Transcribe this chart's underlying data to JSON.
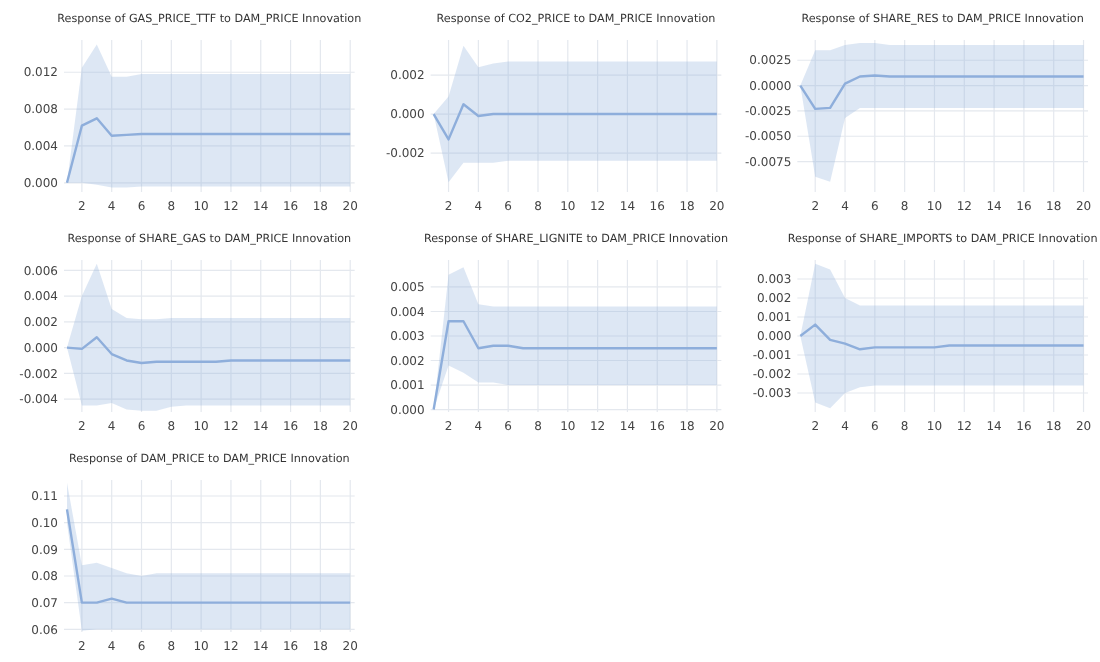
{
  "chart_data": [
    {
      "type": "line",
      "title": "Response of GAS_PRICE_TTF to DAM_PRICE Innovation",
      "x": [
        1,
        2,
        3,
        4,
        5,
        6,
        7,
        8,
        9,
        10,
        11,
        12,
        13,
        14,
        15,
        16,
        17,
        18,
        19,
        20
      ],
      "xlim": [
        0.8,
        20.3
      ],
      "xticks": [
        2,
        4,
        6,
        8,
        10,
        12,
        14,
        16,
        18,
        20
      ],
      "ylim": [
        -0.001,
        0.0155
      ],
      "yticks": [
        {
          "value": 0,
          "label": "0.000"
        },
        0.004,
        0.008,
        0.012
      ],
      "grid": true,
      "series": [
        {
          "color": "#8eaedb",
          "values": [
            0,
            0.0062,
            0.007,
            0.0051,
            0.0052,
            0.0053,
            0.0053,
            0.0053,
            0.0053,
            0.0053,
            0.0053,
            0.0053,
            0.0053,
            0.0053,
            0.0053,
            0.0053,
            0.0053,
            0.0053,
            0.0053,
            0.0053
          ],
          "lower": [
            0,
            0,
            -0.0002,
            -0.0005,
            -0.0005,
            -0.0004,
            -0.0004,
            -0.0004,
            -0.0004,
            -0.0004,
            -0.0004,
            -0.0004,
            -0.0004,
            -0.0004,
            -0.0004,
            -0.0004,
            -0.0004,
            -0.0004,
            -0.0004,
            -0.0004
          ],
          "upper": [
            0,
            0.0125,
            0.015,
            0.0115,
            0.0115,
            0.0118,
            0.0118,
            0.0118,
            0.0118,
            0.0118,
            0.0118,
            0.0118,
            0.0118,
            0.0118,
            0.0118,
            0.0118,
            0.0118,
            0.0118,
            0.0118,
            0.0118
          ]
        }
      ]
    },
    {
      "type": "line",
      "title": "Response of CO2_PRICE to DAM_PRICE Innovation",
      "x": [
        1,
        2,
        3,
        4,
        5,
        6,
        7,
        8,
        9,
        10,
        11,
        12,
        13,
        14,
        15,
        16,
        17,
        18,
        19,
        20
      ],
      "xlim": [
        0.8,
        20.3
      ],
      "xticks": [
        2,
        4,
        6,
        8,
        10,
        12,
        14,
        16,
        18,
        20
      ],
      "ylim": [
        -0.004,
        0.0038
      ],
      "yticks": [
        -0.002,
        {
          "value": 0,
          "label": "0.000"
        },
        0.002
      ],
      "grid": true,
      "series": [
        {
          "color": "#8eaedb",
          "values": [
            0,
            -0.0013,
            0.0005,
            -0.0001,
            0,
            0,
            0,
            0,
            0,
            0,
            0,
            0,
            0,
            0,
            0,
            0,
            0,
            0,
            0,
            0
          ],
          "lower": [
            0,
            -0.0035,
            -0.0025,
            -0.0025,
            -0.0025,
            -0.0024,
            -0.0024,
            -0.0024,
            -0.0024,
            -0.0024,
            -0.0024,
            -0.0024,
            -0.0024,
            -0.0024,
            -0.0024,
            -0.0024,
            -0.0024,
            -0.0024,
            -0.0024,
            -0.0024
          ],
          "upper": [
            0,
            0.0009,
            0.0035,
            0.0024,
            0.0026,
            0.0027,
            0.0027,
            0.0027,
            0.0027,
            0.0027,
            0.0027,
            0.0027,
            0.0027,
            0.0027,
            0.0027,
            0.0027,
            0.0027,
            0.0027,
            0.0027,
            0.0027
          ]
        }
      ]
    },
    {
      "type": "line",
      "title": "Response of SHARE_RES to DAM_PRICE Innovation",
      "x": [
        1,
        2,
        3,
        4,
        5,
        6,
        7,
        8,
        9,
        10,
        11,
        12,
        13,
        14,
        15,
        16,
        17,
        18,
        19,
        20
      ],
      "xlim": [
        0.8,
        20.3
      ],
      "xticks": [
        2,
        4,
        6,
        8,
        10,
        12,
        14,
        16,
        18,
        20
      ],
      "ylim": [
        -0.0105,
        0.0045
      ],
      "yticks": [
        -0.0075,
        {
          "value": -0.005,
          "label": "-0.0050"
        },
        -0.0025,
        {
          "value": 0,
          "label": "0.0000"
        },
        0.0025
      ],
      "grid": true,
      "series": [
        {
          "color": "#8eaedb",
          "values": [
            0,
            -0.0023,
            -0.0022,
            0.0002,
            0.0009,
            0.001,
            0.0009,
            0.0009,
            0.0009,
            0.0009,
            0.0009,
            0.0009,
            0.0009,
            0.0009,
            0.0009,
            0.0009,
            0.0009,
            0.0009,
            0.0009,
            0.0009
          ],
          "lower": [
            0,
            -0.009,
            -0.0095,
            -0.0032,
            -0.0022,
            -0.0022,
            -0.0022,
            -0.0022,
            -0.0022,
            -0.0022,
            -0.0022,
            -0.0022,
            -0.0022,
            -0.0022,
            -0.0022,
            -0.0022,
            -0.0022,
            -0.0022,
            -0.0022,
            -0.0022
          ],
          "upper": [
            0,
            0.0035,
            0.0035,
            0.004,
            0.0042,
            0.0042,
            0.004,
            0.004,
            0.004,
            0.004,
            0.004,
            0.004,
            0.004,
            0.004,
            0.004,
            0.004,
            0.004,
            0.004,
            0.004,
            0.004
          ]
        }
      ]
    },
    {
      "type": "line",
      "title": "Response of SHARE_GAS to DAM_PRICE Innovation",
      "x": [
        1,
        2,
        3,
        4,
        5,
        6,
        7,
        8,
        9,
        10,
        11,
        12,
        13,
        14,
        15,
        16,
        17,
        18,
        19,
        20
      ],
      "xlim": [
        0.8,
        20.3
      ],
      "xticks": [
        2,
        4,
        6,
        8,
        10,
        12,
        14,
        16,
        18,
        20
      ],
      "ylim": [
        -0.005,
        0.0068
      ],
      "yticks": [
        -0.004,
        -0.002,
        {
          "value": 0,
          "label": "0.000"
        },
        0.002,
        0.004,
        0.006
      ],
      "grid": true,
      "series": [
        {
          "color": "#8eaedb",
          "values": [
            0,
            -0.0001,
            0.0008,
            -0.0005,
            -0.001,
            -0.0012,
            -0.0011,
            -0.0011,
            -0.0011,
            -0.0011,
            -0.0011,
            -0.001,
            -0.001,
            -0.001,
            -0.001,
            -0.001,
            -0.001,
            -0.001,
            -0.001,
            -0.001
          ],
          "lower": [
            0,
            -0.0045,
            -0.0045,
            -0.0043,
            -0.0048,
            -0.0049,
            -0.0049,
            -0.0046,
            -0.0045,
            -0.0045,
            -0.0045,
            -0.0045,
            -0.0045,
            -0.0045,
            -0.0045,
            -0.0045,
            -0.0045,
            -0.0045,
            -0.0045,
            -0.0045
          ],
          "upper": [
            0,
            0.004,
            0.0065,
            0.003,
            0.0023,
            0.0022,
            0.0022,
            0.0023,
            0.0023,
            0.0023,
            0.0023,
            0.0023,
            0.0023,
            0.0023,
            0.0023,
            0.0023,
            0.0023,
            0.0023,
            0.0023,
            0.0023
          ]
        }
      ]
    },
    {
      "type": "line",
      "title": "Response of SHARE_LIGNITE to DAM_PRICE Innovation",
      "x": [
        1,
        2,
        3,
        4,
        5,
        6,
        7,
        8,
        9,
        10,
        11,
        12,
        13,
        14,
        15,
        16,
        17,
        18,
        19,
        20
      ],
      "xlim": [
        0.8,
        20.3
      ],
      "xticks": [
        2,
        4,
        6,
        8,
        10,
        12,
        14,
        16,
        18,
        20
      ],
      "ylim": [
        -0.0001,
        0.0061
      ],
      "yticks": [
        {
          "value": 0,
          "label": "0.000"
        },
        0.001,
        0.002,
        0.003,
        0.004,
        0.005
      ],
      "grid": true,
      "series": [
        {
          "color": "#8eaedb",
          "values": [
            0,
            0.0036,
            0.0036,
            0.0025,
            0.0026,
            0.0026,
            0.0025,
            0.0025,
            0.0025,
            0.0025,
            0.0025,
            0.0025,
            0.0025,
            0.0025,
            0.0025,
            0.0025,
            0.0025,
            0.0025,
            0.0025,
            0.0025
          ],
          "lower": [
            0,
            0.0018,
            0.0015,
            0.0011,
            0.0011,
            0.001,
            0.001,
            0.001,
            0.001,
            0.001,
            0.001,
            0.001,
            0.001,
            0.001,
            0.001,
            0.001,
            0.001,
            0.001,
            0.001,
            0.001
          ],
          "upper": [
            0,
            0.0055,
            0.0058,
            0.0043,
            0.0042,
            0.0042,
            0.0042,
            0.0042,
            0.0042,
            0.0042,
            0.0042,
            0.0042,
            0.0042,
            0.0042,
            0.0042,
            0.0042,
            0.0042,
            0.0042,
            0.0042,
            0.0042
          ]
        }
      ]
    },
    {
      "type": "line",
      "title": "Response of SHARE_IMPORTS to DAM_PRICE Innovation",
      "x": [
        1,
        2,
        3,
        4,
        5,
        6,
        7,
        8,
        9,
        10,
        11,
        12,
        13,
        14,
        15,
        16,
        17,
        18,
        19,
        20
      ],
      "xlim": [
        0.8,
        20.3
      ],
      "xticks": [
        2,
        4,
        6,
        8,
        10,
        12,
        14,
        16,
        18,
        20
      ],
      "ylim": [
        -0.004,
        0.004
      ],
      "yticks": [
        -0.003,
        -0.002,
        -0.001,
        {
          "value": 0,
          "label": "0.000"
        },
        0.001,
        0.002,
        0.003
      ],
      "grid": true,
      "series": [
        {
          "color": "#8eaedb",
          "values": [
            0,
            0.0006,
            -0.0002,
            -0.0004,
            -0.0007,
            -0.0006,
            -0.0006,
            -0.0006,
            -0.0006,
            -0.0006,
            -0.0005,
            -0.0005,
            -0.0005,
            -0.0005,
            -0.0005,
            -0.0005,
            -0.0005,
            -0.0005,
            -0.0005,
            -0.0005
          ],
          "lower": [
            0,
            -0.0035,
            -0.0038,
            -0.003,
            -0.0027,
            -0.0026,
            -0.0026,
            -0.0026,
            -0.0026,
            -0.0026,
            -0.0026,
            -0.0026,
            -0.0026,
            -0.0026,
            -0.0026,
            -0.0026,
            -0.0026,
            -0.0026,
            -0.0026,
            -0.0026
          ],
          "upper": [
            0,
            0.0038,
            0.0035,
            0.002,
            0.0016,
            0.0016,
            0.0016,
            0.0016,
            0.0016,
            0.0016,
            0.0016,
            0.0016,
            0.0016,
            0.0016,
            0.0016,
            0.0016,
            0.0016,
            0.0016,
            0.0016,
            0.0016
          ]
        }
      ]
    },
    {
      "type": "line",
      "title": "Response of DAM_PRICE to DAM_PRICE Innovation",
      "x": [
        1,
        2,
        3,
        4,
        5,
        6,
        7,
        8,
        9,
        10,
        11,
        12,
        13,
        14,
        15,
        16,
        17,
        18,
        19,
        20
      ],
      "xlim": [
        0.8,
        20.3
      ],
      "xticks": [
        2,
        4,
        6,
        8,
        10,
        12,
        14,
        16,
        18,
        20
      ],
      "ylim": [
        0.059,
        0.116
      ],
      "yticks": [
        0.06,
        0.07,
        0.08,
        0.09,
        {
          "value": 0.1,
          "label": "0.10"
        },
        0.11
      ],
      "grid": true,
      "series": [
        {
          "color": "#8eaedb",
          "values": [
            0.105,
            0.07,
            0.07,
            0.0715,
            0.07,
            0.07,
            0.07,
            0.07,
            0.07,
            0.07,
            0.07,
            0.07,
            0.07,
            0.07,
            0.07,
            0.07,
            0.07,
            0.07,
            0.07,
            0.07
          ],
          "lower": [
            0.1,
            0.0595,
            0.06,
            0.06,
            0.06,
            0.06,
            0.06,
            0.06,
            0.06,
            0.06,
            0.06,
            0.06,
            0.06,
            0.06,
            0.06,
            0.06,
            0.06,
            0.06,
            0.06,
            0.06
          ],
          "upper": [
            0.115,
            0.084,
            0.085,
            0.083,
            0.081,
            0.08,
            0.081,
            0.081,
            0.081,
            0.081,
            0.081,
            0.081,
            0.081,
            0.081,
            0.081,
            0.081,
            0.081,
            0.081,
            0.081,
            0.081
          ]
        }
      ]
    }
  ]
}
